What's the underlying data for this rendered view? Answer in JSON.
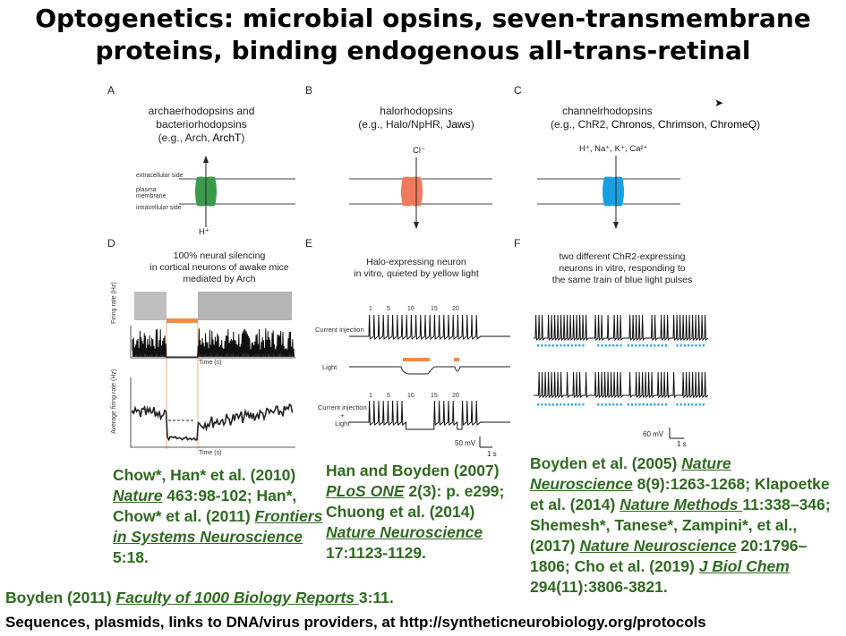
{
  "title": {
    "line1": "Optogenetics: microbial opsins, seven-transmembrane",
    "line2": "proteins, binding endogenous all-trans-retinal"
  },
  "panels": {
    "A": {
      "label": "A",
      "line1": "archaerhodopsins and",
      "line2": "bacteriorhodopsins",
      "line3_pre": "(e.g., Arch, ",
      "line3_em": "ArchT",
      "line3_post": ")",
      "ion": "H⁺",
      "side_extra": "extracellular side",
      "side_plasma1": "plasma",
      "side_plasma2": "membrane",
      "side_intra": "intracellular side",
      "color": "#3a9a49"
    },
    "B": {
      "label": "B",
      "line1": "halorhodopsins",
      "line2_pre": "(e.g., Halo/NpHR, ",
      "line2_em": "Jaws",
      "line2_post": ")",
      "ion": "Cl⁻",
      "color": "#f07a5c"
    },
    "C": {
      "label": "C",
      "line1": "channelrhodopsins",
      "line2_pre": "(e.g., ChR2, ",
      "line2_em": "Chronos, Chrimson, ChromeQ",
      "line2_post": ")",
      "ion": "H⁺, Na⁺, K⁺, Ca²⁺",
      "color": "#1aa0e0"
    },
    "D": {
      "label": "D",
      "line1": "100% neural silencing",
      "line2": "in cortical neurons of awake mice",
      "line3": "mediated by Arch",
      "ylabel_top": "Firing rate (Hz)",
      "ylabel_bottom": "Average firing rate (Hz)",
      "xlabel": "Time (s)"
    },
    "E": {
      "label": "E",
      "line1": "Halo-expressing neuron",
      "line2": "in vitro, quieted by yellow light",
      "row1": "Current injection",
      "row2": "Light",
      "row3a": "Current injection",
      "row3b": "+",
      "row3c": "Light",
      "ticks": [
        "1",
        "5",
        "10",
        "15",
        "20"
      ],
      "scale_v": "50 mV",
      "scale_t": "1 s"
    },
    "F": {
      "label": "F",
      "line1": "two different ChR2-expressing",
      "line2": "neurons in vitro, responding to",
      "line3": "the same train of blue light pulses",
      "scale_v": "60 mV",
      "scale_t": "1 s"
    }
  },
  "citations": {
    "left": {
      "p1": "Chow*, Han* et al. (2010) ",
      "j1": "Nature",
      "p2": " 463:98-102; Han*, Chow* et al. (2011) ",
      "j2": "Frontiers in Systems Neuroscience",
      "p3": " 5:18."
    },
    "middle": {
      "p1": "Han and Boyden (2007) ",
      "j1": "PLoS ONE",
      "p2": " 2(3): p. e299; Chuong et al. (2014) ",
      "j2": "Nature Neuroscience ",
      "p3": "17:1123-1129."
    },
    "right": {
      "p1": "Boyden et al. (2005) ",
      "j1": "Nature Neuroscience",
      "p2": " 8(9):1263-1268; Klapoetke et al. (2014) ",
      "j2": "Nature Methods ",
      "p3": "11:338–346; Shemesh*, Tanese*, Zampini*, et al., (2017) ",
      "j3": "Nature Neuroscience",
      "p4": " 20:1796–1806; Cho et al. (2019) ",
      "j4": "J Biol Chem",
      "p5": " 294(11):3806-3821."
    },
    "faculty": {
      "p1": "Boyden (2011) ",
      "j1": "Faculty of 1000 Biology Reports ",
      "p2": "3:11."
    }
  },
  "footer": "Sequences, plasmids, links to DNA/virus providers, at http://syntheticneurobiology.org/protocols"
}
